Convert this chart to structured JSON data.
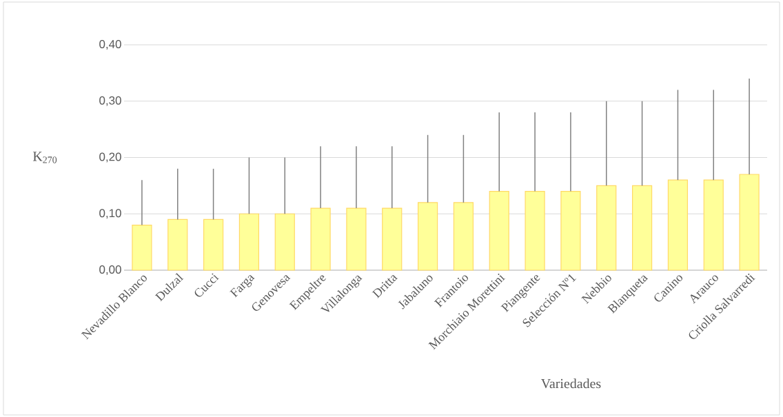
{
  "chart_data": {
    "type": "bar",
    "xlabel": "Variedades",
    "ylabel": "K$_{270}$",
    "categories": [
      "Nevadillo Blanco",
      "Dulzal",
      "Cucci",
      "Farga",
      "Genovesa",
      "Empeltre",
      "Villalonga",
      "Dritta",
      "Jabaluno",
      "Frantoio",
      "Morchiaio Morettini",
      "Piangente",
      "Selección Nº1",
      "Nebbio",
      "Blanqueta",
      "Canino",
      "Arauco",
      "Criolla Salvarredi"
    ],
    "values": [
      0.08,
      0.09,
      0.09,
      0.1,
      0.1,
      0.11,
      0.11,
      0.11,
      0.12,
      0.12,
      0.14,
      0.14,
      0.14,
      0.15,
      0.15,
      0.16,
      0.16,
      0.17
    ],
    "errors": [
      [
        0.08,
        0.16
      ],
      [
        0.09,
        0.18
      ],
      [
        0.09,
        0.18
      ],
      [
        0.1,
        0.2
      ],
      [
        0.1,
        0.2
      ],
      [
        0.11,
        0.22
      ],
      [
        0.11,
        0.22
      ],
      [
        0.11,
        0.22
      ],
      [
        0.12,
        0.24
      ],
      [
        0.12,
        0.24
      ],
      [
        0.14,
        0.28
      ],
      [
        0.14,
        0.28
      ],
      [
        0.14,
        0.28
      ],
      [
        0.15,
        0.3
      ],
      [
        0.15,
        0.3
      ],
      [
        0.16,
        0.32
      ],
      [
        0.16,
        0.32
      ],
      [
        0.17,
        0.34
      ]
    ],
    "color": "#ffff99",
    "ylim": [
      0,
      0.4
    ],
    "yticks": [
      {
        "value": 0,
        "label": "0,00"
      },
      {
        "value": 0.1,
        "label": "0,10"
      },
      {
        "value": 0.2,
        "label": "0,20"
      },
      {
        "value": 0.3,
        "label": "0,30"
      },
      {
        "value": 0.4,
        "label": "0,40"
      }
    ],
    "grid": "y"
  }
}
